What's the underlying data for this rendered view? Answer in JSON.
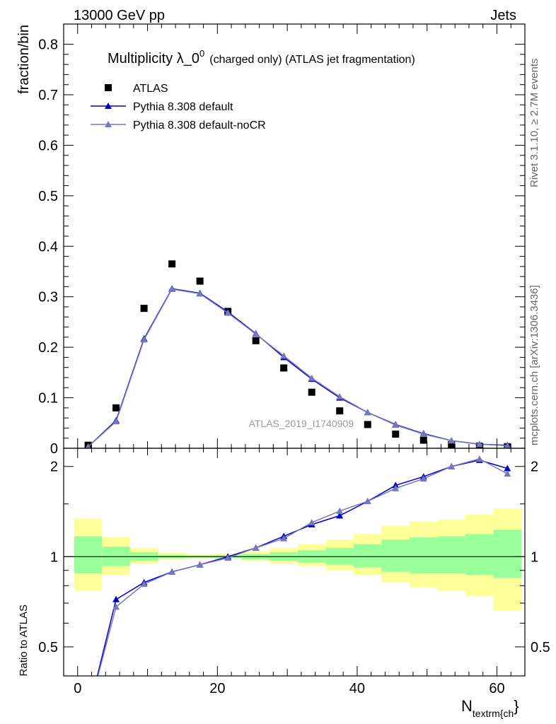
{
  "header": {
    "left": "13000 GeV pp",
    "right": "Jets"
  },
  "side_labels": {
    "rivet": "Rivet 3.1.10, ≥ 2.7M events",
    "mcplots": "mcplots.cern.ch [arXiv:1306.3436]"
  },
  "analysis_id": "ATLAS_2019_I1740909",
  "chart_data": [
    {
      "type": "scatter",
      "panel": "main",
      "title": "Multiplicity λ_0",
      "title_sup": "0",
      "title_suffix": "(charged only) (ATLAS jet fragmentation)",
      "ylabel": "fraction/bin",
      "xlabel": "N",
      "xlabel_sub": "textrm{ch",
      "xlabel_tail": "}",
      "xlim": [
        -2,
        64
      ],
      "ylim": [
        0,
        0.84
      ],
      "yticks": [
        0,
        0.1,
        0.2,
        0.3,
        0.4,
        0.5,
        0.6,
        0.7,
        0.8
      ],
      "ytick_labels": [
        "0",
        "0.1",
        "0.2",
        "0.3",
        "0.4",
        "0.5",
        "0.6",
        "0.7",
        "0.8"
      ],
      "legend_position": "top-left",
      "x": [
        1.5,
        5.5,
        9.5,
        13.5,
        17.5,
        21.5,
        25.5,
        29.5,
        33.5,
        37.5,
        41.5,
        45.5,
        49.5,
        53.5,
        57.5,
        61.5
      ],
      "series": [
        {
          "name": "ATLAS",
          "marker": "square",
          "color": "#000000",
          "values": [
            0.006,
            0.08,
            0.277,
            0.365,
            0.331,
            0.271,
            0.213,
            0.159,
            0.111,
            0.074,
            0.047,
            0.028,
            0.016,
            0.007,
            0.004,
            0.003
          ]
        },
        {
          "name": "Pythia 8.308 default",
          "marker": "triangle",
          "color": "#0000cc",
          "values": [
            0.003,
            0.055,
            0.217,
            0.316,
            0.307,
            0.27,
            0.227,
            0.18,
            0.137,
            0.1,
            0.071,
            0.047,
            0.029,
            0.015,
            0.008,
            0.006
          ]
        },
        {
          "name": "Pythia 8.308 default-noCR",
          "marker": "triangle",
          "color": "#7777bb",
          "values": [
            0.003,
            0.053,
            0.215,
            0.315,
            0.306,
            0.268,
            0.226,
            0.183,
            0.139,
            0.102,
            0.071,
            0.046,
            0.028,
            0.015,
            0.008,
            0.005
          ]
        }
      ]
    },
    {
      "type": "line",
      "panel": "ratio",
      "ylabel": "Ratio to ATLAS",
      "ylim": [
        0.4,
        2.3
      ],
      "yscale": "log",
      "yticks": [
        0.5,
        1,
        2
      ],
      "ytick_labels": [
        "0.5",
        "1",
        "2"
      ],
      "xticks": [
        0,
        20,
        40,
        60
      ],
      "xtick_labels": [
        "0",
        "20",
        "40",
        "60"
      ],
      "bin_edges": [
        -0.5,
        3.5,
        7.5,
        11.5,
        15.5,
        19.5,
        23.5,
        27.5,
        31.5,
        35.5,
        39.5,
        43.5,
        47.5,
        51.5,
        55.5,
        59.5,
        63.5
      ],
      "band_yellow": {
        "lower": [
          0.77,
          0.87,
          0.95,
          0.98,
          0.985,
          0.985,
          0.97,
          0.95,
          0.93,
          0.9,
          0.87,
          0.82,
          0.79,
          0.77,
          0.74,
          0.66
        ],
        "upper": [
          1.34,
          1.16,
          1.07,
          1.03,
          1.02,
          1.025,
          1.04,
          1.07,
          1.1,
          1.14,
          1.19,
          1.27,
          1.31,
          1.33,
          1.38,
          1.45
        ]
      },
      "band_green": {
        "lower": [
          0.88,
          0.93,
          0.97,
          0.99,
          0.993,
          0.99,
          0.98,
          0.97,
          0.955,
          0.94,
          0.92,
          0.89,
          0.88,
          0.88,
          0.87,
          0.85
        ],
        "upper": [
          1.17,
          1.08,
          1.035,
          1.015,
          1.01,
          1.012,
          1.02,
          1.035,
          1.05,
          1.07,
          1.1,
          1.14,
          1.16,
          1.17,
          1.19,
          1.23
        ]
      },
      "x": [
        1.5,
        5.5,
        9.5,
        13.5,
        17.5,
        21.5,
        25.5,
        29.5,
        33.5,
        37.5,
        41.5,
        45.5,
        49.5,
        53.5,
        57.5,
        61.5
      ],
      "series": [
        {
          "name": "Pythia 8.308 default",
          "color": "#0000cc",
          "values": [
            0.3,
            0.72,
            0.82,
            0.89,
            0.94,
            1.0,
            1.07,
            1.17,
            1.28,
            1.37,
            1.53,
            1.73,
            1.85,
            2.0,
            2.1,
            1.97
          ]
        },
        {
          "name": "Pythia 8.308 default-noCR",
          "color": "#7777bb",
          "values": [
            0.3,
            0.68,
            0.81,
            0.89,
            0.94,
            0.99,
            1.07,
            1.15,
            1.3,
            1.42,
            1.53,
            1.69,
            1.82,
            2.0,
            2.12,
            1.89
          ]
        }
      ]
    }
  ]
}
